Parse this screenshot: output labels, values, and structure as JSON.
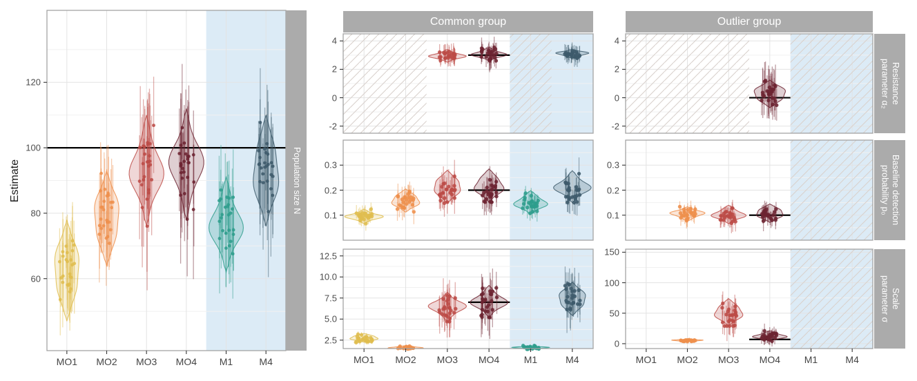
{
  "colors": {
    "strip_bg": "#ababab",
    "strip_fg": "#ffffff",
    "panel_border": "#a3a3a3",
    "grid_major": "#e3e3e3",
    "grid_minor": "#f1f1f1",
    "band": "#dcebf6",
    "hatch": "#d9d1cd",
    "truth_line": "#000000",
    "tick_mark": "#333333",
    "tick_text": "#4d4d4d",
    "groups": {
      "MO1": "#dfbd4e",
      "MO2": "#ee8f4c",
      "MO3": "#bc4b47",
      "MO4": "#6c2331",
      "M1": "#2e9d8c",
      "M4": "#3d5a6b"
    }
  },
  "axis": {
    "ylabel": "Estimate"
  },
  "strips": {
    "left": "Population size N",
    "col_headers": [
      "Common group",
      "Outlier group"
    ],
    "row_labels": [
      "Resistance\nparameter α₂",
      "Baseline detection\nprobability p₀",
      "Scale\nparameter σ"
    ]
  },
  "chart_data": {
    "type": "violin",
    "categories": [
      "MO1",
      "MO2",
      "MO3",
      "MO4",
      "M1",
      "M4"
    ],
    "shaded_categories": [
      "M1",
      "M4"
    ],
    "panels": [
      {
        "id": "pop",
        "facet_row": "Population size N",
        "facet_col": null,
        "ylim": [
          38,
          142
        ],
        "yticks": [
          {
            "v": 60,
            "label": "60"
          },
          {
            "v": 80,
            "label": "80"
          },
          {
            "v": 100,
            "label": "100"
          },
          {
            "v": 120,
            "label": "120"
          }
        ],
        "minor": [
          50,
          70,
          90,
          110,
          130
        ],
        "truth": {
          "value": 100,
          "span": "all"
        },
        "hatch_ranges": [],
        "show_x_labels": true,
        "groups": [
          {
            "cat": "MO1",
            "center": 65,
            "sd": 5.5,
            "violin": [
              47,
              78
            ],
            "ci_half": 11,
            "n": 25
          },
          {
            "cat": "MO2",
            "center": 79,
            "sd": 5,
            "violin": [
              64,
              93
            ],
            "ci_half": 12,
            "n": 25
          },
          {
            "cat": "MO3",
            "center": 95,
            "sd": 7,
            "violin": [
              76,
              110
            ],
            "ci_half": 16,
            "n": 25
          },
          {
            "cat": "MO4",
            "center": 96,
            "sd": 7.5,
            "violin": [
              78,
              112
            ],
            "ci_half": 16,
            "n": 25
          },
          {
            "cat": "M1",
            "center": 76,
            "sd": 6,
            "violin": [
              62,
              91
            ],
            "ci_half": 12,
            "n": 25
          },
          {
            "cat": "M4",
            "center": 94,
            "sd": 6.5,
            "violin": [
              76,
              110
            ],
            "ci_half": 15,
            "n": 25
          }
        ]
      },
      {
        "id": "m1",
        "facet_row": "Resistance parameter α₂",
        "facet_col": "Common group",
        "ylim": [
          -2.5,
          4.5
        ],
        "yticks": [
          {
            "v": 4,
            "label": "4"
          },
          {
            "v": 2,
            "label": "2"
          },
          {
            "v": 0,
            "label": "0"
          },
          {
            "v": -2,
            "label": "-2"
          }
        ],
        "minor": [
          -1,
          1,
          3
        ],
        "truth": {
          "value": 3,
          "span": "MO4"
        },
        "hatch_ranges": [
          [
            0,
            1
          ],
          [
            4,
            4
          ]
        ],
        "show_x_labels": false,
        "groups": [
          {
            "cat": "MO3",
            "center": 2.9,
            "sd": 0.22,
            "violin": [
              2.5,
              3.4
            ],
            "ci_half": 0.55,
            "n": 25
          },
          {
            "cat": "MO4",
            "center": 3.02,
            "sd": 0.25,
            "violin": [
              2.6,
              3.55
            ],
            "ci_half": 0.6,
            "n": 25
          },
          {
            "cat": "M4",
            "center": 3.05,
            "sd": 0.16,
            "violin": [
              2.78,
              3.42
            ],
            "ci_half": 0.5,
            "n": 25
          }
        ]
      },
      {
        "id": "m2",
        "facet_row": "Baseline detection probability p₀",
        "facet_col": "Common group",
        "ylim": [
          0,
          0.4
        ],
        "yticks": [
          {
            "v": 0.3,
            "label": "0.3"
          },
          {
            "v": 0.2,
            "label": "0.2"
          },
          {
            "v": 0.1,
            "label": "0.1"
          }
        ],
        "minor": [
          0.05,
          0.15,
          0.25,
          0.35
        ],
        "truth": {
          "value": 0.2,
          "span": "MO4"
        },
        "hatch_ranges": [],
        "show_x_labels": false,
        "groups": [
          {
            "cat": "MO1",
            "center": 0.093,
            "sd": 0.013,
            "violin": [
              0.066,
              0.124
            ],
            "ci_half": 0.024,
            "n": 25
          },
          {
            "cat": "MO2",
            "center": 0.155,
            "sd": 0.02,
            "violin": [
              0.112,
              0.205
            ],
            "ci_half": 0.038,
            "n": 25
          },
          {
            "cat": "MO3",
            "center": 0.195,
            "sd": 0.028,
            "violin": [
              0.148,
              0.28
            ],
            "ci_half": 0.05,
            "n": 25
          },
          {
            "cat": "MO4",
            "center": 0.195,
            "sd": 0.028,
            "violin": [
              0.152,
              0.285
            ],
            "ci_half": 0.05,
            "n": 25
          },
          {
            "cat": "M1",
            "center": 0.145,
            "sd": 0.018,
            "violin": [
              0.103,
              0.198
            ],
            "ci_half": 0.034,
            "n": 25
          },
          {
            "cat": "M4",
            "center": 0.19,
            "sd": 0.026,
            "violin": [
              0.15,
              0.278
            ],
            "ci_half": 0.048,
            "n": 25
          }
        ]
      },
      {
        "id": "m3",
        "facet_row": "Scale parameter σ",
        "facet_col": "Common group",
        "ylim": [
          1.5,
          13.3
        ],
        "yticks": [
          {
            "v": 12.5,
            "label": "12.5"
          },
          {
            "v": 10,
            "label": "10.0"
          },
          {
            "v": 7.5,
            "label": "7.5"
          },
          {
            "v": 5,
            "label": "5.0"
          },
          {
            "v": 2.5,
            "label": "2.5"
          }
        ],
        "minor": [
          3.75,
          6.25,
          8.75,
          11.25
        ],
        "truth": {
          "value": 7,
          "span": "MO4"
        },
        "hatch_ranges": [],
        "show_x_labels": true,
        "groups": [
          {
            "cat": "MO1",
            "center": 2.7,
            "sd": 0.28,
            "violin": [
              2.25,
              3.3
            ],
            "ci_half": 0.3,
            "n": 25
          },
          {
            "cat": "MO2",
            "center": 1.6,
            "sd": 0.1,
            "violin": [
              1.38,
              1.85
            ],
            "ci_half": 0.12,
            "n": 25
          },
          {
            "cat": "MO3",
            "center": 6.4,
            "sd": 0.9,
            "violin": [
              4.7,
              8.2
            ],
            "ci_half": 1.9,
            "n": 25
          },
          {
            "cat": "MO4",
            "center": 7.0,
            "sd": 0.95,
            "violin": [
              5.2,
              9.0
            ],
            "ci_half": 2.0,
            "n": 25
          },
          {
            "cat": "M1",
            "center": 1.6,
            "sd": 0.1,
            "violin": [
              1.38,
              1.85
            ],
            "ci_half": 0.12,
            "n": 25
          },
          {
            "cat": "M4",
            "center": 7.4,
            "sd": 0.95,
            "violin": [
              5.4,
              9.4
            ],
            "ci_half": 2.0,
            "n": 25
          }
        ]
      },
      {
        "id": "r1",
        "facet_row": "Resistance parameter α₂",
        "facet_col": "Outlier group",
        "ylim": [
          -2.5,
          4.5
        ],
        "yticks": [
          {
            "v": 4,
            "label": "4"
          },
          {
            "v": 2,
            "label": "2"
          },
          {
            "v": 0,
            "label": "0"
          },
          {
            "v": -2,
            "label": "-2"
          }
        ],
        "minor": [
          -1,
          1,
          3
        ],
        "truth": {
          "value": 0,
          "span": "MO4"
        },
        "hatch_ranges": [
          [
            0,
            2
          ],
          [
            4,
            5
          ]
        ],
        "show_x_labels": false,
        "groups": [
          {
            "cat": "MO4",
            "center": 0.32,
            "sd": 0.45,
            "violin": [
              -0.7,
              1.25
            ],
            "ci_half": 1.4,
            "n": 25
          }
        ]
      },
      {
        "id": "r2",
        "facet_row": "Baseline detection probability p₀",
        "facet_col": "Outlier group",
        "ylim": [
          0,
          0.4
        ],
        "yticks": [
          {
            "v": 0.3,
            "label": "0.3"
          },
          {
            "v": 0.2,
            "label": "0.2"
          },
          {
            "v": 0.1,
            "label": "0.1"
          }
        ],
        "minor": [
          0.05,
          0.15,
          0.25,
          0.35
        ],
        "truth": {
          "value": 0.1,
          "span": "MO4"
        },
        "hatch_ranges": [
          [
            4,
            5
          ]
        ],
        "show_x_labels": false,
        "groups": [
          {
            "cat": "MO2",
            "center": 0.1,
            "sd": 0.012,
            "violin": [
              0.076,
              0.134
            ],
            "ci_half": 0.024,
            "n": 25
          },
          {
            "cat": "MO3",
            "center": 0.095,
            "sd": 0.014,
            "violin": [
              0.066,
              0.14
            ],
            "ci_half": 0.03,
            "n": 25
          },
          {
            "cat": "MO4",
            "center": 0.1,
            "sd": 0.015,
            "violin": [
              0.071,
              0.145
            ],
            "ci_half": 0.03,
            "n": 25
          }
        ]
      },
      {
        "id": "r3",
        "facet_row": "Scale parameter σ",
        "facet_col": "Outlier group",
        "ylim": [
          -8,
          155
        ],
        "yticks": [
          {
            "v": 150,
            "label": "150"
          },
          {
            "v": 100,
            "label": "100"
          },
          {
            "v": 50,
            "label": "50"
          },
          {
            "v": 0,
            "label": "0"
          }
        ],
        "minor": [
          25,
          75,
          125
        ],
        "truth": {
          "value": 7,
          "span": "MO4"
        },
        "hatch_ranges": [
          [
            4,
            5
          ]
        ],
        "show_x_labels": true,
        "groups": [
          {
            "cat": "MO2",
            "center": 5,
            "sd": 0.9,
            "violin": [
              3.2,
              7.6
            ],
            "ci_half": 2,
            "n": 25
          },
          {
            "cat": "MO3",
            "center": 48,
            "sd": 11,
            "violin": [
              29,
              74
            ],
            "ci_half": 19,
            "n": 25
          },
          {
            "cat": "MO4",
            "center": 10,
            "sd": 3.5,
            "violin": [
              4,
              21
            ],
            "ci_half": 9,
            "n": 25
          }
        ]
      }
    ]
  }
}
